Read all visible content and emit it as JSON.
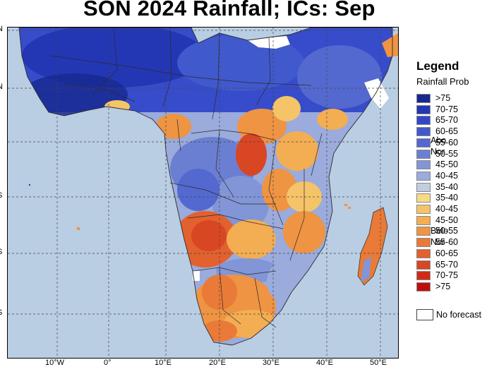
{
  "title": "SON 2024 Rainfall; ICs: Sep",
  "map": {
    "lon_labels": [
      "10°W",
      "0°",
      "10°E",
      "20°E",
      "30°E",
      "40°E",
      "50°E"
    ],
    "lat_labels": [
      "N",
      "N",
      "°",
      "S",
      "S",
      "S"
    ],
    "colors": {
      "ocean": "#b9cde3",
      "land_mask": "#ffffff",
      "border": "#2a2a2a"
    }
  },
  "legend": {
    "title": "Legend",
    "subtitle": "Rainfall Prob",
    "items": [
      {
        "label": ">75",
        "color": "#17288f"
      },
      {
        "label": "70-75",
        "color": "#2337b4"
      },
      {
        "label": "65-70",
        "color": "#3147c8"
      },
      {
        "label": "60-65",
        "color": "#4059cc"
      },
      {
        "label": "55-60",
        "color": "#5469cf"
      },
      {
        "label": "50-55",
        "color": "#6b7fd2"
      },
      {
        "label": "45-50",
        "color": "#8295d6"
      },
      {
        "label": "40-45",
        "color": "#9aabdc"
      },
      {
        "label": "35-40",
        "color": "#c3cde2"
      },
      {
        "label": "35-40",
        "color": "#f7db86"
      },
      {
        "label": "40-45",
        "color": "#f5c468"
      },
      {
        "label": "45-50",
        "color": "#f3ad52"
      },
      {
        "label": "50-55",
        "color": "#ee9442"
      },
      {
        "label": "55-60",
        "color": "#e97a37"
      },
      {
        "label": "60-65",
        "color": "#e2612e"
      },
      {
        "label": "65-70",
        "color": "#d94624"
      },
      {
        "label": "70-75",
        "color": "#cf2c17"
      },
      {
        "label": ">75",
        "color": "#bd0f0d"
      }
    ],
    "above_label": [
      "Abo",
      "Nor"
    ],
    "below_label": [
      "Belo",
      "Nor"
    ],
    "no_forecast": "No forecast"
  }
}
